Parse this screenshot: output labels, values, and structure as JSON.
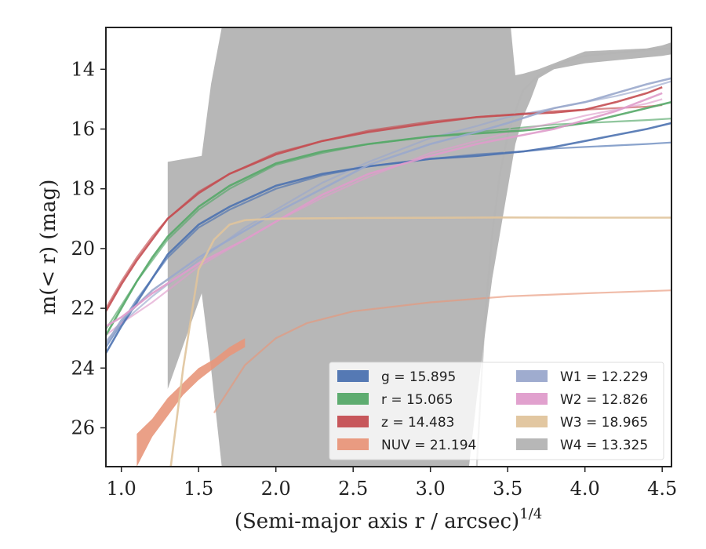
{
  "chart_data": {
    "type": "line",
    "title": "",
    "xlabel": "(Semi-major axis r / arcsec)",
    "xlabel_sup": "1/4",
    "ylabel": "m(< r) (mag)",
    "xlim": [
      0.9,
      4.56
    ],
    "ylim": [
      27.3,
      12.6
    ],
    "y_inverted": true,
    "xticks": [
      1.0,
      1.5,
      2.0,
      2.5,
      3.0,
      3.5,
      4.0,
      4.5
    ],
    "xtick_labels": [
      "1.0",
      "1.5",
      "2.0",
      "2.5",
      "3.0",
      "3.5",
      "4.0",
      "4.5"
    ],
    "yticks": [
      14,
      16,
      18,
      20,
      22,
      24,
      26
    ],
    "ytick_labels": [
      "14",
      "16",
      "18",
      "20",
      "22",
      "24",
      "26"
    ],
    "grid": false,
    "legend_position": "lower-right",
    "legend": [
      {
        "label": "g = 15.895",
        "color": "#4c72b0"
      },
      {
        "label": "r = 15.065",
        "color": "#55a868"
      },
      {
        "label": "z = 14.483",
        "color": "#c44e52"
      },
      {
        "label": "NUV = 21.194",
        "color": "#e8967a"
      },
      {
        "label": "W1 = 12.229",
        "color": "#9aa8cc"
      },
      {
        "label": "W2 = 12.826",
        "color": "#df9ccb"
      },
      {
        "label": "W3 = 18.965",
        "color": "#e0c49c"
      },
      {
        "label": "W4 = 13.325",
        "color": "#b3b3b3"
      }
    ],
    "series": [
      {
        "name": "g = 15.895",
        "color": "#4c72b0",
        "x": [
          0.9,
          1.0,
          1.1,
          1.2,
          1.3,
          1.5,
          1.7,
          2.0,
          2.3,
          2.6,
          3.0,
          3.3,
          3.6,
          3.8,
          4.0,
          4.2,
          4.4,
          4.56
        ],
        "y": [
          23.5,
          22.6,
          21.8,
          21.0,
          20.2,
          19.2,
          18.6,
          17.9,
          17.5,
          17.25,
          17.0,
          16.9,
          16.75,
          16.6,
          16.4,
          16.2,
          16.0,
          15.8
        ],
        "model_y": [
          23.3,
          22.5,
          21.7,
          21.0,
          20.3,
          19.3,
          18.7,
          18.0,
          17.55,
          17.25,
          17.0,
          16.85,
          16.75,
          16.65,
          16.6,
          16.55,
          16.5,
          16.45
        ]
      },
      {
        "name": "r = 15.065",
        "color": "#55a868",
        "x": [
          0.9,
          1.0,
          1.1,
          1.2,
          1.3,
          1.5,
          1.7,
          2.0,
          2.3,
          2.6,
          3.0,
          3.3,
          3.6,
          3.8,
          4.0,
          4.2,
          4.4,
          4.56
        ],
        "y": [
          22.9,
          22.0,
          21.1,
          20.3,
          19.6,
          18.6,
          17.9,
          17.15,
          16.75,
          16.5,
          16.25,
          16.15,
          16.05,
          15.95,
          15.8,
          15.55,
          15.3,
          15.1
        ],
        "model_y": [
          22.7,
          21.9,
          21.1,
          20.4,
          19.7,
          18.7,
          18.0,
          17.2,
          16.8,
          16.5,
          16.25,
          16.1,
          15.95,
          15.85,
          15.8,
          15.75,
          15.7,
          15.65
        ]
      },
      {
        "name": "z = 14.483",
        "color": "#c44e52",
        "x": [
          0.9,
          1.0,
          1.1,
          1.2,
          1.3,
          1.5,
          1.7,
          2.0,
          2.3,
          2.6,
          3.0,
          3.3,
          3.6,
          3.8,
          4.0,
          4.2,
          4.4,
          4.5
        ],
        "y": [
          22.1,
          21.2,
          20.4,
          19.7,
          19.0,
          18.15,
          17.5,
          16.85,
          16.4,
          16.1,
          15.8,
          15.6,
          15.5,
          15.45,
          15.35,
          15.1,
          14.8,
          14.6
        ],
        "model_y": [
          22.0,
          21.1,
          20.3,
          19.6,
          19.0,
          18.1,
          17.5,
          16.8,
          16.4,
          16.05,
          15.75,
          15.6,
          15.48,
          15.4,
          15.35,
          15.3,
          15.25,
          15.2
        ]
      },
      {
        "name": "NUV = 21.194",
        "color": "#e8967a",
        "band_x": [
          1.1,
          1.2,
          1.3,
          1.4,
          1.5,
          1.6,
          1.7,
          1.8
        ],
        "band_lo": [
          27.3,
          26.3,
          25.6,
          24.9,
          24.4,
          24.0,
          23.6,
          23.3
        ],
        "band_hi": [
          26.2,
          25.7,
          25.0,
          24.5,
          24.0,
          23.7,
          23.3,
          23.0
        ],
        "model_x": [
          1.6,
          1.8,
          2.0,
          2.2,
          2.5,
          3.0,
          3.5,
          4.0,
          4.56
        ],
        "model_y": [
          25.5,
          23.9,
          23.0,
          22.5,
          22.1,
          21.8,
          21.6,
          21.5,
          21.4
        ]
      },
      {
        "name": "W1 = 12.229",
        "color": "#9aa8cc",
        "x": [
          0.9,
          1.0,
          1.2,
          1.5,
          1.8,
          2.0,
          2.3,
          2.6,
          3.0,
          3.3,
          3.5,
          3.8,
          4.0,
          4.2,
          4.4,
          4.56
        ],
        "y": [
          23.2,
          22.4,
          21.4,
          20.3,
          19.4,
          18.8,
          18.0,
          17.2,
          16.5,
          16.1,
          15.8,
          15.3,
          15.1,
          14.8,
          14.5,
          14.3
        ],
        "model_y": [
          23.1,
          22.5,
          21.6,
          20.4,
          19.3,
          18.7,
          17.8,
          17.1,
          16.3,
          15.9,
          15.6,
          15.3,
          15.1,
          14.9,
          14.65,
          14.4
        ]
      },
      {
        "name": "W2 = 12.826",
        "color": "#df9ccb",
        "x": [
          0.9,
          1.0,
          1.2,
          1.5,
          1.8,
          2.0,
          2.3,
          2.6,
          3.0,
          3.3,
          3.6,
          3.8,
          4.0,
          4.2,
          4.4,
          4.5
        ],
        "y": [
          22.6,
          22.3,
          21.5,
          20.5,
          19.7,
          19.1,
          18.2,
          17.5,
          16.9,
          16.5,
          16.2,
          16.0,
          15.7,
          15.4,
          15.0,
          14.8
        ],
        "model_y": [
          22.9,
          22.5,
          21.8,
          20.6,
          19.7,
          19.1,
          18.3,
          17.6,
          16.8,
          16.4,
          16.0,
          15.8,
          15.55,
          15.35,
          15.15,
          15.0
        ]
      },
      {
        "name": "W3 = 18.965",
        "color": "#e0c49c",
        "x": [
          1.32,
          1.4,
          1.5,
          1.6,
          1.7,
          1.8,
          2.0,
          2.5,
          3.0,
          3.5,
          4.0,
          4.56
        ],
        "y": [
          27.3,
          24.0,
          20.7,
          19.7,
          19.2,
          19.05,
          19.0,
          18.98,
          18.97,
          18.96,
          18.965,
          18.965
        ]
      },
      {
        "name": "W4 = 13.325",
        "color": "#b3b3b3",
        "band_x": [
          1.3,
          1.3,
          1.52,
          1.58,
          1.65,
          1.72,
          3.52,
          3.55,
          3.6,
          3.7,
          3.8,
          3.9,
          4.0,
          4.2,
          4.4,
          4.5,
          4.56,
          4.56,
          4.5,
          4.4,
          4.2,
          4.0,
          3.9,
          3.8,
          3.7,
          3.65,
          3.6,
          3.55,
          3.5,
          3.4,
          3.35,
          3.3,
          3.25,
          3.2,
          2.2,
          2.1,
          1.65,
          1.58,
          1.52
        ],
        "band_y": [
          24.7,
          17.1,
          16.9,
          14.5,
          12.6,
          12.6,
          12.6,
          14.2,
          14.15,
          14.0,
          13.8,
          13.6,
          13.4,
          13.35,
          13.3,
          13.2,
          13.1,
          13.5,
          13.55,
          13.6,
          13.7,
          13.8,
          13.9,
          14.0,
          14.3,
          15.0,
          15.6,
          16.5,
          18.0,
          21.0,
          23.0,
          25.0,
          27.3,
          27.3,
          27.3,
          27.3,
          27.3,
          24.0,
          21.5
        ],
        "model_x": [
          3.3,
          3.35,
          3.4,
          3.45,
          3.5,
          3.55,
          3.6,
          3.7,
          3.8,
          3.9,
          4.0,
          4.2,
          4.4,
          4.56
        ],
        "model_y": [
          27.3,
          22.5,
          19.5,
          17.5,
          16.2,
          15.4,
          14.7,
          14.2,
          13.9,
          13.7,
          13.55,
          13.45,
          13.35,
          13.3
        ]
      }
    ]
  }
}
